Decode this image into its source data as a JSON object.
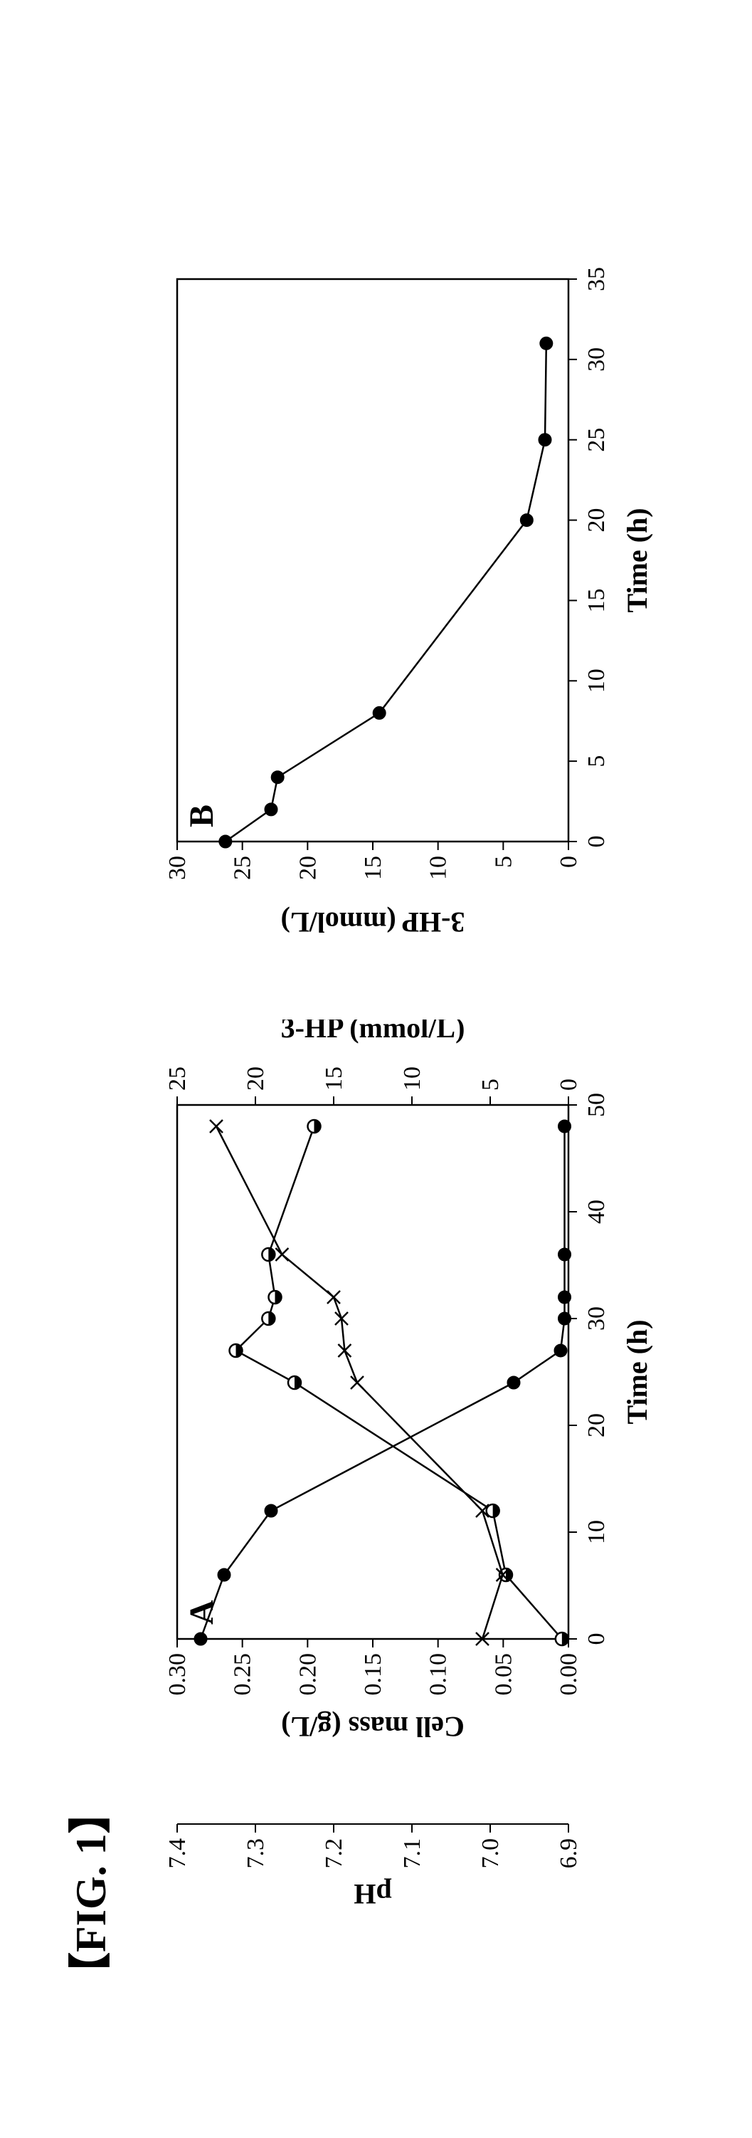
{
  "figure_label": "【FIG. 1】",
  "panelA": {
    "label": "A",
    "x_title": "Time (h)",
    "x_ticks": [
      0,
      10,
      20,
      30,
      40,
      50
    ],
    "xlim": [
      0,
      50
    ],
    "y_left_outer_title": "pH",
    "y_left_outer_ticks": [
      6.9,
      7.0,
      7.1,
      7.2,
      7.3,
      7.4
    ],
    "y_left_outer_lim": [
      6.9,
      7.4
    ],
    "y_left_inner_title": "Cell mass (g/L)",
    "y_left_inner_ticks": [
      0.0,
      0.05,
      0.1,
      0.15,
      0.2,
      0.25,
      0.3
    ],
    "y_left_inner_lim": [
      0.0,
      0.3
    ],
    "y_right_title": "3-HP (mmol/L)",
    "y_right_ticks": [
      0,
      5,
      10,
      15,
      20,
      25
    ],
    "y_right_lim": [
      0,
      25
    ],
    "pH_series": {
      "marker": "filled-circle",
      "points": [
        [
          0,
          7.37
        ],
        [
          6,
          7.34
        ],
        [
          12,
          7.28
        ],
        [
          24,
          6.97
        ],
        [
          27,
          6.91
        ],
        [
          30,
          6.905
        ],
        [
          32,
          6.905
        ],
        [
          36,
          6.905
        ],
        [
          48,
          6.905
        ]
      ]
    },
    "cellmass_series": {
      "marker": "half-circle",
      "points": [
        [
          0,
          0.005
        ],
        [
          6,
          0.048
        ],
        [
          12,
          0.058
        ],
        [
          24,
          0.21
        ],
        [
          27,
          0.255
        ],
        [
          30,
          0.23
        ],
        [
          32,
          0.225
        ],
        [
          36,
          0.23
        ],
        [
          48,
          0.195
        ]
      ]
    },
    "hp_series": {
      "marker": "x",
      "points": [
        [
          0,
          5.5
        ],
        [
          6,
          4.2
        ],
        [
          12,
          5.5
        ],
        [
          24,
          13.5
        ],
        [
          27,
          14.3
        ],
        [
          30,
          14.5
        ],
        [
          32,
          15.0
        ],
        [
          36,
          18.3
        ],
        [
          48,
          22.5
        ]
      ]
    }
  },
  "panelB": {
    "label": "B",
    "x_title": "Time (h)",
    "x_ticks": [
      0,
      5,
      10,
      15,
      20,
      25,
      30,
      35
    ],
    "xlim": [
      0,
      35
    ],
    "y_title": "3-HP (mmol/L)",
    "y_ticks": [
      0,
      5,
      10,
      15,
      20,
      25,
      30
    ],
    "ylim": [
      0,
      30
    ],
    "series": {
      "marker": "filled-circle",
      "points": [
        [
          0,
          26.3
        ],
        [
          2,
          22.8
        ],
        [
          4,
          22.3
        ],
        [
          8,
          14.5
        ],
        [
          20,
          3.2
        ],
        [
          25,
          1.8
        ],
        [
          31,
          1.7
        ]
      ]
    }
  },
  "colors": {
    "stroke": "#000000",
    "bg": "#ffffff"
  }
}
